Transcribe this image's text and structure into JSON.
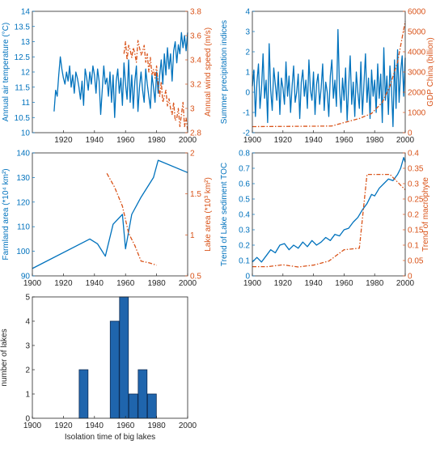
{
  "colors": {
    "blue": "#0072bd",
    "orange": "#d95319",
    "bar_fill": "#1f65ad",
    "axis": "#262626"
  },
  "chart_data": [
    {
      "id": "p1",
      "type": "line",
      "xlabel": "",
      "ylabel": "Annual air temperature (°C)",
      "y2label": "Annual wind speed (m/s)",
      "xlim": [
        1900,
        2000
      ],
      "ylim": [
        10,
        14
      ],
      "y2lim": [
        2.8,
        3.8
      ],
      "xticks": [
        1920,
        1940,
        1960,
        1980,
        2000
      ],
      "yticks": [
        10,
        10.5,
        11,
        11.5,
        12,
        12.5,
        13,
        13.5,
        14
      ],
      "y2ticks": [
        2.8,
        3,
        3.2,
        3.4,
        3.6,
        3.8
      ],
      "series": [
        {
          "axis": "left",
          "style": "solid",
          "color": "blue",
          "x": [
            1914,
            1915,
            1916,
            1917,
            1918,
            1919,
            1920,
            1921,
            1922,
            1923,
            1924,
            1925,
            1926,
            1927,
            1928,
            1929,
            1930,
            1931,
            1932,
            1933,
            1934,
            1935,
            1936,
            1937,
            1938,
            1939,
            1940,
            1941,
            1942,
            1943,
            1944,
            1945,
            1946,
            1947,
            1948,
            1949,
            1950,
            1951,
            1952,
            1953,
            1954,
            1955,
            1956,
            1957,
            1958,
            1959,
            1960,
            1961,
            1962,
            1963,
            1964,
            1965,
            1966,
            1967,
            1968,
            1969,
            1970,
            1971,
            1972,
            1973,
            1974,
            1975,
            1976,
            1977,
            1978,
            1979,
            1980,
            1981,
            1982,
            1983,
            1984,
            1985,
            1986,
            1987,
            1988,
            1989,
            1990,
            1991,
            1992,
            1993,
            1994,
            1995,
            1996,
            1997,
            1998,
            1999,
            2000
          ],
          "y": [
            10.7,
            11.4,
            11.2,
            11.9,
            12.5,
            12.1,
            11.8,
            11.6,
            12.0,
            11.7,
            12.2,
            11.5,
            11.9,
            11.3,
            12.0,
            11.8,
            11.5,
            11.1,
            11.7,
            10.9,
            12.1,
            11.8,
            11.4,
            12.0,
            11.6,
            12.2,
            11.9,
            11.3,
            12.1,
            11.7,
            10.6,
            11.4,
            12.2,
            11.6,
            11.8,
            11.2,
            12.0,
            11.0,
            11.9,
            10.5,
            11.7,
            12.1,
            11.3,
            11.8,
            10.9,
            12.3,
            11.6,
            11.1,
            12.4,
            11.0,
            11.9,
            10.8,
            11.7,
            12.2,
            10.7,
            11.5,
            12.0,
            11.4,
            11.0,
            12.1,
            11.6,
            11.2,
            10.8,
            11.9,
            11.5,
            11.0,
            12.0,
            11.3,
            11.9,
            12.4,
            11.6,
            12.6,
            11.9,
            12.8,
            12.1,
            12.6,
            11.7,
            12.7,
            13.0,
            12.3,
            12.9,
            12.6,
            13.3,
            12.8,
            13.2,
            12.7,
            13.3
          ]
        },
        {
          "axis": "right",
          "style": "dashdot",
          "color": "orange",
          "x": [
            1959,
            1960,
            1961,
            1962,
            1963,
            1964,
            1965,
            1966,
            1967,
            1968,
            1969,
            1970,
            1971,
            1972,
            1973,
            1974,
            1975,
            1976,
            1977,
            1978,
            1979,
            1980,
            1981,
            1982,
            1983,
            1984,
            1985,
            1986,
            1987,
            1988,
            1989,
            1990,
            1991,
            1992,
            1993,
            1994,
            1995,
            1996,
            1997,
            1998,
            1999,
            2000
          ],
          "y": [
            3.45,
            3.55,
            3.4,
            3.52,
            3.48,
            3.42,
            3.5,
            3.45,
            3.38,
            3.56,
            3.5,
            3.44,
            3.47,
            3.52,
            3.38,
            3.45,
            3.3,
            3.42,
            3.28,
            3.32,
            3.25,
            3.35,
            3.2,
            3.1,
            3.22,
            3.05,
            3.1,
            3.15,
            3.02,
            3.08,
            3.0,
            2.95,
            3.05,
            2.9,
            2.92,
            3.0,
            2.85,
            2.95,
            3.05,
            2.85,
            2.92,
            2.82
          ]
        }
      ]
    },
    {
      "id": "p2",
      "type": "line",
      "xlabel": "",
      "ylabel": "Summer precipitation indices",
      "y2label": "GDP China (billion)",
      "xlim": [
        1900,
        2000
      ],
      "ylim": [
        -2,
        4
      ],
      "y2lim": [
        0,
        6000
      ],
      "xticks": [
        1900,
        1920,
        1940,
        1960,
        1980,
        2000
      ],
      "yticks": [
        -2,
        -1,
        0,
        1,
        2,
        3,
        4
      ],
      "y2ticks": [
        0,
        1000,
        2000,
        3000,
        4000,
        5000,
        6000
      ],
      "series": [
        {
          "axis": "left",
          "style": "solid",
          "color": "blue",
          "x": [
            1900,
            1901,
            1902,
            1903,
            1904,
            1905,
            1906,
            1907,
            1908,
            1909,
            1910,
            1911,
            1912,
            1913,
            1914,
            1915,
            1916,
            1917,
            1918,
            1919,
            1920,
            1921,
            1922,
            1923,
            1924,
            1925,
            1926,
            1927,
            1928,
            1929,
            1930,
            1931,
            1932,
            1933,
            1934,
            1935,
            1936,
            1937,
            1938,
            1939,
            1940,
            1941,
            1942,
            1943,
            1944,
            1945,
            1946,
            1947,
            1948,
            1949,
            1950,
            1951,
            1952,
            1953,
            1954,
            1955,
            1956,
            1957,
            1958,
            1959,
            1960,
            1961,
            1962,
            1963,
            1964,
            1965,
            1966,
            1967,
            1968,
            1969,
            1970,
            1971,
            1972,
            1973,
            1974,
            1975,
            1976,
            1977,
            1978,
            1979,
            1980,
            1981,
            1982,
            1983,
            1984,
            1985,
            1986,
            1987,
            1988,
            1989,
            1990,
            1991,
            1992,
            1993,
            1994,
            1995,
            1996,
            1997,
            1998,
            1999,
            2000
          ],
          "y": [
            0.3,
            1.1,
            -1.2,
            0.5,
            1.4,
            -0.8,
            0.2,
            1.9,
            -0.3,
            0.6,
            -1.5,
            2.4,
            0.1,
            -0.9,
            1.2,
            0.4,
            -0.4,
            1.0,
            -1.1,
            0.7,
            0.2,
            -0.6,
            1.5,
            -0.2,
            0.8,
            -1.0,
            0.3,
            1.3,
            -0.5,
            0.0,
            0.9,
            -1.3,
            0.5,
            1.1,
            -0.2,
            0.6,
            -0.8,
            1.6,
            0.1,
            -0.4,
            1.0,
            -1.1,
            0.4,
            0.9,
            -0.6,
            0.2,
            1.4,
            -0.9,
            0.5,
            0.0,
            -1.2,
            0.8,
            1.6,
            -0.3,
            0.6,
            -0.7,
            3.1,
            0.2,
            -1.0,
            0.7,
            -0.4,
            1.2,
            -1.4,
            0.3,
            1.8,
            -0.6,
            0.5,
            -1.2,
            1.0,
            0.0,
            -0.8,
            1.5,
            -1.1,
            0.4,
            1.9,
            -0.5,
            0.7,
            -1.3,
            1.1,
            -0.2,
            0.6,
            -1.0,
            1.4,
            -0.3,
            0.9,
            -1.5,
            2.2,
            -0.4,
            0.8,
            -1.1,
            1.3,
            0.2,
            -1.7,
            1.6,
            -0.8,
            2.1,
            -0.5,
            1.0,
            1.8,
            -0.2,
            1.7
          ]
        },
        {
          "axis": "right",
          "style": "dashdot",
          "color": "orange",
          "x": [
            1900,
            1920,
            1940,
            1952,
            1960,
            1970,
            1978,
            1985,
            1990,
            1995,
            2000
          ],
          "y": [
            300,
            310,
            320,
            330,
            500,
            700,
            950,
            1500,
            2300,
            3500,
            5500
          ]
        }
      ]
    },
    {
      "id": "p3",
      "type": "line",
      "xlabel": "",
      "ylabel": "Farmland area (*10⁴ km²)",
      "y2label": "Lake area (*10³ km²)",
      "xlim": [
        1900,
        2000
      ],
      "ylim": [
        90,
        140
      ],
      "y2lim": [
        0.5,
        2
      ],
      "xticks": [
        1900,
        1920,
        1940,
        1960,
        1980,
        2000
      ],
      "yticks": [
        90,
        100,
        110,
        120,
        130,
        140
      ],
      "y2ticks": [
        0.5,
        1,
        1.5,
        2
      ],
      "series": [
        {
          "axis": "left",
          "style": "solid",
          "color": "blue",
          "x": [
            1900,
            1937,
            1942,
            1947,
            1952,
            1958,
            1960,
            1964,
            1970,
            1978,
            1981,
            2000
          ],
          "y": [
            93,
            105,
            103,
            98,
            111,
            115,
            101,
            115,
            122,
            130,
            137,
            132
          ]
        },
        {
          "axis": "right",
          "style": "dashdot",
          "color": "orange",
          "x": [
            1948,
            1953,
            1958,
            1962,
            1966,
            1970,
            1975,
            1980
          ],
          "y": [
            1.75,
            1.58,
            1.35,
            1.02,
            0.87,
            0.68,
            0.66,
            0.63
          ]
        }
      ]
    },
    {
      "id": "p4",
      "type": "line",
      "xlabel": "",
      "ylabel": "Trend of Lake sediment TOC",
      "y2label": "Trend of macrophyte",
      "xlim": [
        1900,
        2000
      ],
      "ylim": [
        0,
        0.8
      ],
      "y2lim": [
        0,
        0.4
      ],
      "xticks": [
        1900,
        1920,
        1940,
        1960,
        1980,
        2000
      ],
      "yticks": [
        0,
        0.1,
        0.2,
        0.3,
        0.4,
        0.5,
        0.6,
        0.7,
        0.8
      ],
      "y2ticks": [
        0,
        0.05,
        0.1,
        0.15,
        0.2,
        0.25,
        0.3,
        0.35,
        0.4
      ],
      "series": [
        {
          "axis": "left",
          "style": "solid",
          "color": "blue",
          "x": [
            1900,
            1903,
            1906,
            1909,
            1912,
            1915,
            1918,
            1921,
            1924,
            1927,
            1930,
            1933,
            1936,
            1939,
            1942,
            1945,
            1948,
            1951,
            1954,
            1957,
            1960,
            1963,
            1966,
            1969,
            1972,
            1975,
            1978,
            1980,
            1983,
            1986,
            1989,
            1992,
            1995,
            1997,
            1999,
            2000
          ],
          "y": [
            0.09,
            0.12,
            0.09,
            0.13,
            0.17,
            0.15,
            0.2,
            0.21,
            0.17,
            0.2,
            0.18,
            0.22,
            0.19,
            0.23,
            0.2,
            0.22,
            0.25,
            0.23,
            0.27,
            0.26,
            0.3,
            0.31,
            0.35,
            0.38,
            0.43,
            0.47,
            0.53,
            0.52,
            0.57,
            0.6,
            0.63,
            0.62,
            0.66,
            0.7,
            0.77,
            0.74
          ]
        },
        {
          "axis": "right",
          "style": "dashdot",
          "color": "orange",
          "x": [
            1900,
            1910,
            1920,
            1930,
            1940,
            1950,
            1960,
            1970,
            1975,
            1990,
            2000
          ],
          "y": [
            0.03,
            0.03,
            0.036,
            0.029,
            0.035,
            0.048,
            0.085,
            0.09,
            0.33,
            0.33,
            0.28
          ]
        }
      ]
    },
    {
      "id": "p5",
      "type": "bar",
      "xlabel": "Isolation time of big lakes",
      "ylabel": "number of lakes",
      "xlim": [
        1900,
        2000
      ],
      "ylim": [
        0,
        5
      ],
      "xticks": [
        1900,
        1920,
        1940,
        1960,
        1980,
        2000
      ],
      "yticks": [
        0,
        1,
        2,
        3,
        4,
        5
      ],
      "x": [
        1933,
        1953,
        1959,
        1965,
        1971,
        1977
      ],
      "values": [
        2,
        4,
        5,
        1,
        2,
        1
      ]
    }
  ]
}
